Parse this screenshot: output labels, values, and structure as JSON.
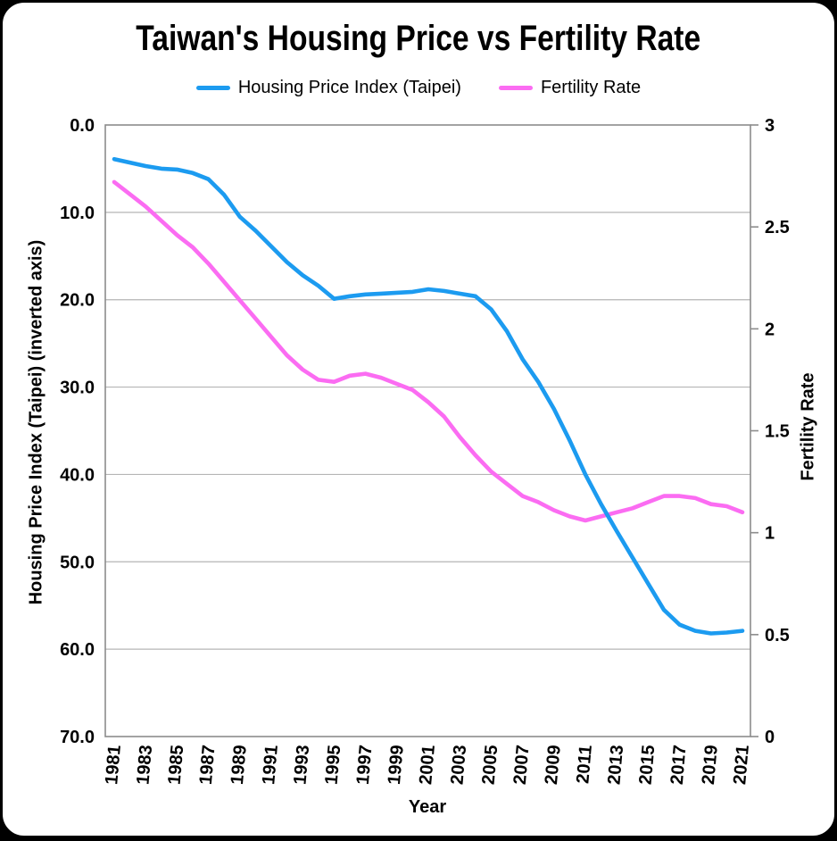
{
  "page": {
    "background_color": "#000000",
    "card_color": "#ffffff"
  },
  "chart_data": {
    "type": "line",
    "title": "Taiwan's Housing Price vs Fertility Rate",
    "legend_position": "top",
    "grid": "horizontal",
    "x_axis": {
      "label": "Year",
      "years": [
        1981,
        1982,
        1983,
        1984,
        1985,
        1986,
        1987,
        1988,
        1989,
        1990,
        1991,
        1992,
        1993,
        1994,
        1995,
        1996,
        1997,
        1998,
        1999,
        2000,
        2001,
        2002,
        2003,
        2004,
        2005,
        2006,
        2007,
        2008,
        2009,
        2010,
        2011,
        2012,
        2013,
        2014,
        2015,
        2016,
        2017,
        2018,
        2019,
        2020,
        2021
      ],
      "tick_years": [
        1981,
        1983,
        1985,
        1987,
        1989,
        1991,
        1993,
        1995,
        1997,
        1999,
        2001,
        2003,
        2005,
        2007,
        2009,
        2011,
        2013,
        2015,
        2017,
        2019,
        2021
      ]
    },
    "left_axis": {
      "label": "Housing Price Index (Taipei) (inverted axis)",
      "inverted": true,
      "range": [
        0,
        70
      ],
      "tick_labels": [
        "0.0",
        "10.0",
        "20.0",
        "30.0",
        "40.0",
        "50.0",
        "60.0",
        "70.0"
      ]
    },
    "right_axis": {
      "label": "Fertility Rate",
      "range": [
        0,
        3
      ],
      "tick_labels": [
        "3",
        "2.5",
        "2",
        "1.5",
        "1",
        "0.5",
        "0"
      ]
    },
    "series": [
      {
        "name": "Housing Price Index (Taipei)",
        "axis": "left",
        "color": "#1C9BF0",
        "values": [
          3.9,
          4.3,
          4.7,
          5.0,
          5.1,
          5.5,
          6.2,
          8.0,
          10.5,
          12.1,
          13.9,
          15.7,
          17.2,
          18.4,
          19.9,
          19.6,
          19.4,
          19.3,
          19.2,
          19.1,
          18.8,
          19.0,
          19.3,
          19.6,
          21.1,
          23.6,
          26.8,
          29.4,
          32.5,
          36.1,
          40.0,
          43.4,
          46.5,
          49.5,
          52.5,
          55.5,
          57.2,
          57.9,
          58.2,
          58.1,
          57.9
        ]
      },
      {
        "name": "Fertility Rate",
        "axis": "right",
        "color": "#FB6CF2",
        "values": [
          2.72,
          2.66,
          2.6,
          2.53,
          2.46,
          2.4,
          2.32,
          2.23,
          2.14,
          2.05,
          1.96,
          1.87,
          1.8,
          1.75,
          1.74,
          1.77,
          1.78,
          1.76,
          1.73,
          1.7,
          1.64,
          1.57,
          1.47,
          1.38,
          1.3,
          1.24,
          1.18,
          1.15,
          1.11,
          1.08,
          1.06,
          1.08,
          1.1,
          1.12,
          1.15,
          1.18,
          1.18,
          1.17,
          1.14,
          1.13,
          1.1
        ]
      }
    ]
  }
}
